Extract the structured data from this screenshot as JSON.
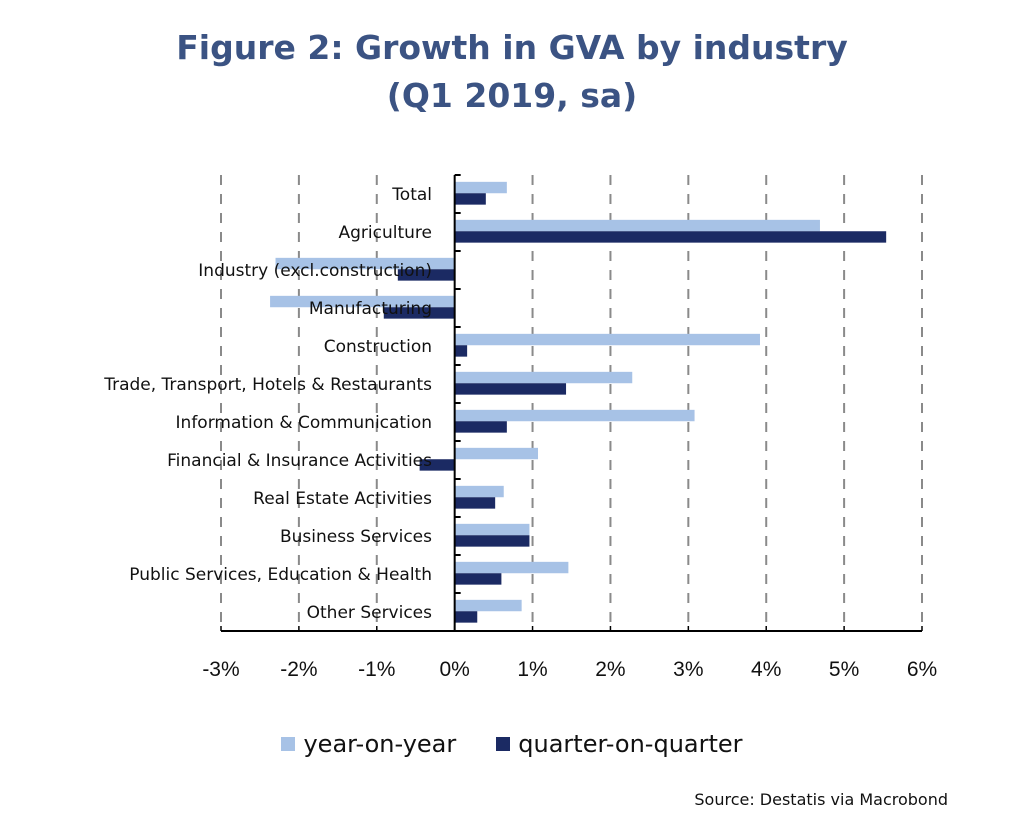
{
  "chart_data": {
    "type": "bar",
    "orientation": "horizontal",
    "title": "Figure 2: Growth in GVA by industry",
    "subtitle": "(Q1 2019, sa)",
    "xlabel": "",
    "ylabel": "",
    "xlim": [
      -3,
      6
    ],
    "x_ticks": [
      -3,
      -2,
      -1,
      0,
      1,
      2,
      3,
      4,
      5,
      6
    ],
    "x_tick_labels": [
      "-3%",
      "-2%",
      "-1%",
      "0%",
      "1%",
      "2%",
      "3%",
      "4%",
      "5%",
      "6%"
    ],
    "grid": "vertical dashed",
    "legend_position": "bottom",
    "categories": [
      "Total",
      "Agriculture",
      "Industry (excl.construction)",
      "Manufacturing",
      "Construction",
      "Trade, Transport, Hotels & Restaurants",
      "Information & Communication",
      "Financial & Insurance Activities",
      "Real Estate Activities",
      "Business Services",
      "Public Services, Education & Health",
      "Other Services"
    ],
    "series": [
      {
        "name": "year-on-year",
        "color": "#a7c2e6",
        "values": [
          0.67,
          4.69,
          -2.3,
          -2.37,
          3.92,
          2.28,
          3.08,
          1.07,
          0.63,
          0.96,
          1.46,
          0.86
        ]
      },
      {
        "name": "quarter-on-quarter",
        "color": "#1b2a63",
        "values": [
          0.4,
          5.54,
          -0.73,
          -0.91,
          0.16,
          1.43,
          0.67,
          -0.45,
          0.52,
          0.96,
          0.6,
          0.29
        ]
      }
    ],
    "source": "Source: Destatis via Macrobond"
  }
}
